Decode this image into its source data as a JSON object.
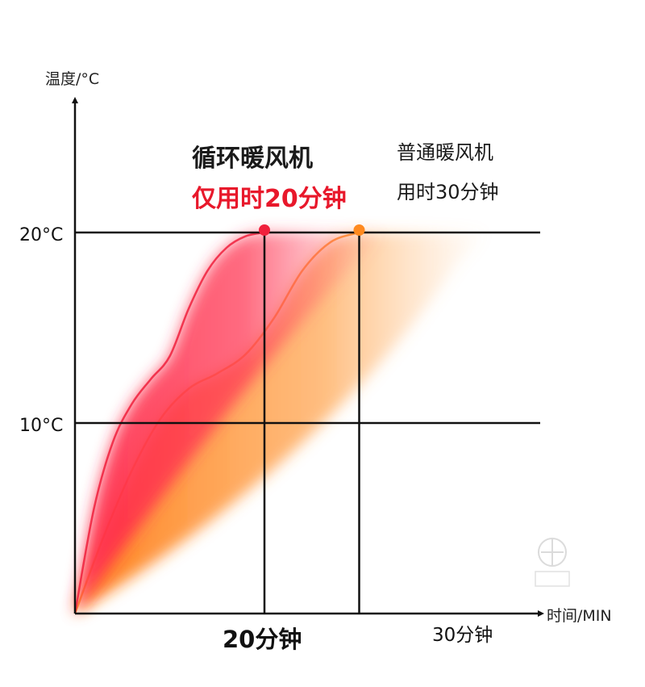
{
  "chart_data": {
    "type": "area",
    "ylabel": "温度/°C",
    "xlabel": "时间/MIN",
    "y_ticks": [
      "10°C",
      "20°C"
    ],
    "y_tick_values": [
      10,
      20
    ],
    "x_ticks": [
      "20分钟",
      "30分钟"
    ],
    "x_tick_values": [
      20,
      30
    ],
    "xlim": [
      0,
      32
    ],
    "ylim": [
      0,
      27
    ],
    "grid": true,
    "series": [
      {
        "name": "循环暖风机",
        "color": "#f0203c",
        "x": [
          0,
          2,
          4,
          6,
          8,
          10,
          12,
          14,
          16,
          18,
          20
        ],
        "y": [
          0,
          5.5,
          9,
          11,
          12.3,
          13.5,
          16,
          18,
          19.2,
          19.8,
          20
        ]
      },
      {
        "name": "普通暖风机",
        "color": "#ff8a1f",
        "x": [
          0,
          3,
          6,
          9,
          12,
          15,
          18,
          21,
          24,
          27,
          30
        ],
        "y": [
          0,
          4,
          7.5,
          10.2,
          11.8,
          12.6,
          13.6,
          15.5,
          18,
          19.5,
          20
        ]
      }
    ],
    "annotations": {
      "circ_name": "循环暖风机",
      "circ_time": "仅用时20分钟",
      "norm_name": "普通暖风机",
      "norm_time": "用时30分钟"
    }
  }
}
